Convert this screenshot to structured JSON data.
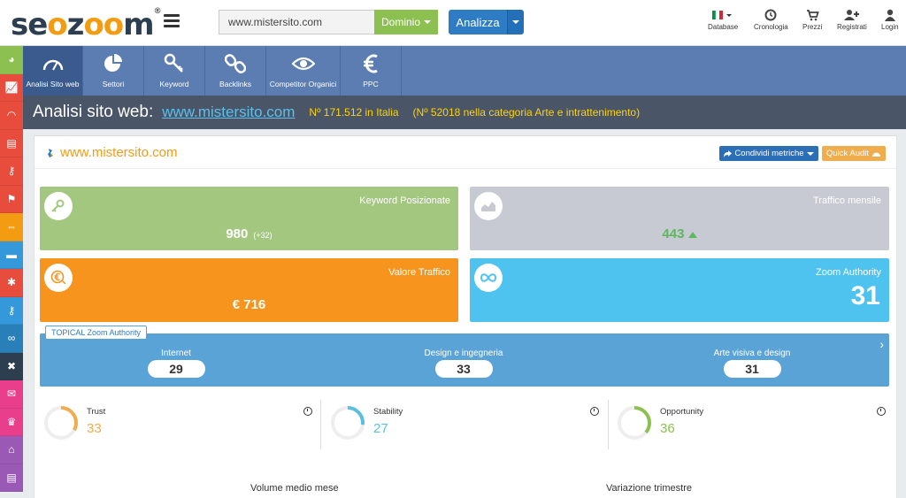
{
  "header": {
    "logo": "seozoom",
    "search": {
      "value": "www.mistersito.com"
    },
    "dominio_label": "Dominio",
    "analizza_label": "Analizza",
    "nav": [
      {
        "label": "Database",
        "icon": "italy-flag-icon"
      },
      {
        "label": "Cronologia",
        "icon": "history-icon"
      },
      {
        "label": "Prezzi",
        "icon": "cart-icon"
      },
      {
        "label": "Registrati",
        "icon": "add-user-icon"
      },
      {
        "label": "Login",
        "icon": "user-icon"
      }
    ]
  },
  "sidebar": {
    "colors": [
      "#8cc152",
      "#e74c3c",
      "#e74c3c",
      "#e74c3c",
      "#e74c3c",
      "#e74c3c",
      "#f39c12",
      "#3498db",
      "#e74c3c",
      "#3498db",
      "#2980b9",
      "#2c3e50",
      "#e83e8c",
      "#e83e8c",
      "#9b59b6",
      "#9b59b6"
    ]
  },
  "tools": [
    {
      "label": "Analisi Sito web",
      "icon": "speedometer-icon",
      "active": true
    },
    {
      "label": "Settori",
      "icon": "pie-chart-icon",
      "active": false
    },
    {
      "label": "Keyword",
      "icon": "key-icon",
      "active": false
    },
    {
      "label": "Backlinks",
      "icon": "chain-icon",
      "active": false
    },
    {
      "label": "Competitor Organici",
      "icon": "eye-icon",
      "active": false
    },
    {
      "label": "PPC",
      "icon": "euro-icon",
      "active": false
    }
  ],
  "titlebar": {
    "title": "Analisi sito web:",
    "domain": "www.mistersito.com",
    "rank": "Nº 171.512 in Italia",
    "category_rank": "(Nº 52018 nella categoria Arte e intrattenimento)"
  },
  "panel": {
    "site": "www.mistersito.com",
    "share_label": "Condividi metriche",
    "audit_label": "Quick Audit"
  },
  "cards": {
    "keyword": {
      "title": "Keyword Posizionate",
      "value": "980",
      "delta": "(+32)",
      "color": "#a4c77f"
    },
    "traffico": {
      "title": "Traffico mensile",
      "value": "443",
      "color": "#c8cad3"
    },
    "valore": {
      "title": "Valore Traffico",
      "value": "€ 716",
      "color": "#f7941d"
    },
    "zoom": {
      "title": "Zoom Authority",
      "value": "31",
      "color": "#4fc3f0"
    }
  },
  "topical": {
    "label": "TOPICAL Zoom Authority",
    "items": [
      {
        "label": "Internet",
        "value": "29"
      },
      {
        "label": "Design e ingegneria",
        "value": "33"
      },
      {
        "label": "Arte visiva e design",
        "value": "31"
      }
    ]
  },
  "metrics": [
    {
      "label": "Trust",
      "value": "33",
      "color": "#f0ad4e",
      "level": 0.33
    },
    {
      "label": "Stability",
      "value": "27",
      "color": "#5bc0de",
      "level": 0.27
    },
    {
      "label": "Opportunity",
      "value": "36",
      "color": "#8cc152",
      "level": 0.36
    }
  ],
  "bottom": {
    "volume": "Volume medio mese",
    "variazione": "Variazione trimestre"
  }
}
